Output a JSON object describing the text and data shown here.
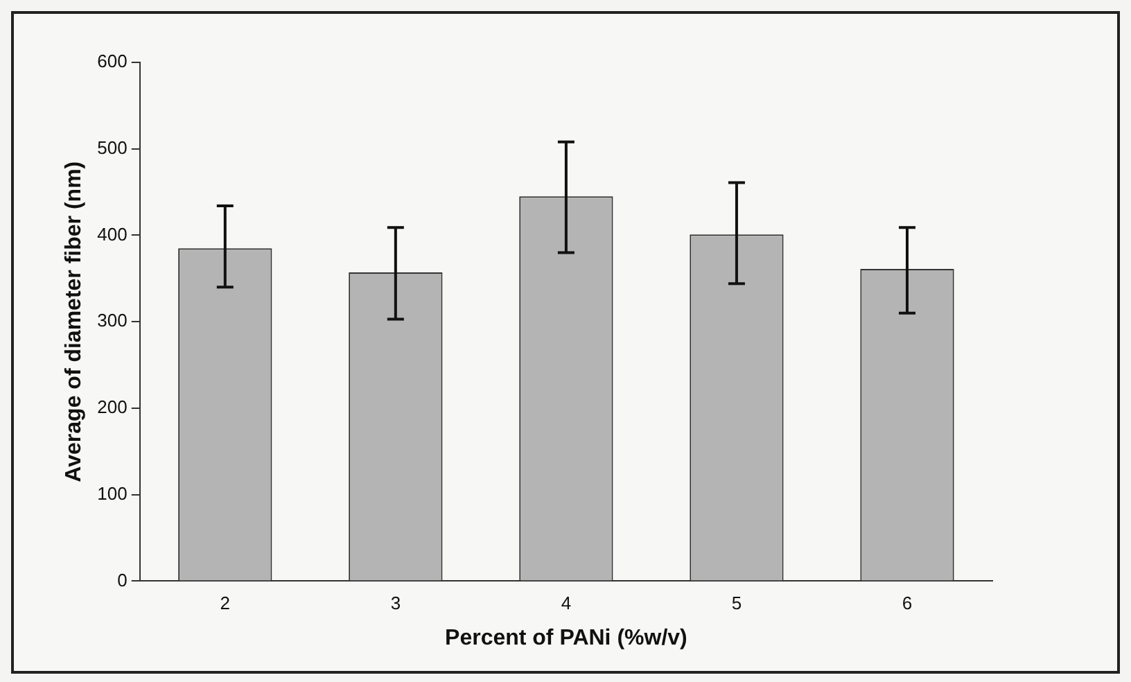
{
  "chart_data": {
    "type": "bar",
    "xlabel": "Percent of PANi (%w/v)",
    "ylabel": "Average of diameter fiber (nm)",
    "categories": [
      "2",
      "3",
      "4",
      "5",
      "6"
    ],
    "values": [
      385,
      357,
      445,
      401,
      361
    ],
    "errors": [
      [
        340,
        434
      ],
      [
        303,
        409
      ],
      [
        380,
        508
      ],
      [
        344,
        461
      ],
      [
        310,
        409
      ]
    ],
    "color": "#b4b4b4",
    "ylim": [
      0,
      600
    ],
    "yticks": [
      0,
      100,
      200,
      300,
      400,
      500,
      600
    ],
    "grid": false,
    "legend": false
  }
}
